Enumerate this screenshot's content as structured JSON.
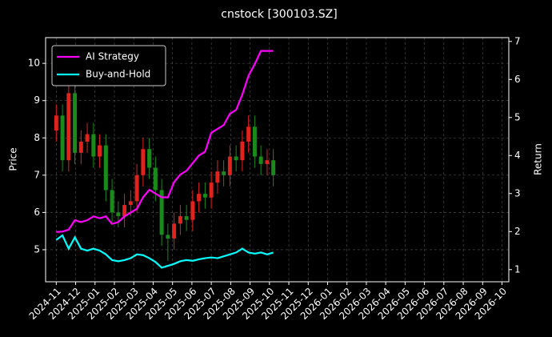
{
  "chart_data": {
    "type": "candlestick",
    "title": "cnstock [300103.SZ]",
    "ylabel": "Price",
    "y2label": "Return",
    "x": [
      0,
      0.32,
      0.64,
      0.96,
      1.28,
      1.6,
      1.92,
      2.24,
      2.56,
      2.88,
      3.2,
      3.52,
      3.84,
      4.16,
      4.48,
      4.8,
      5.12,
      5.44,
      5.76,
      6.08,
      6.4,
      6.72,
      7.04,
      7.36,
      7.68,
      8,
      8.32,
      8.64,
      8.96,
      9.28,
      9.6,
      9.92,
      10.24,
      10.56,
      10.88,
      11.2
    ],
    "open": [
      8.2,
      8.6,
      7.4,
      9.2,
      7.6,
      7.9,
      8.1,
      7.5,
      7.8,
      6.6,
      6.0,
      5.9,
      6.2,
      6.3,
      7.0,
      7.7,
      7.2,
      6.6,
      5.4,
      5.3,
      5.7,
      5.9,
      5.8,
      6.3,
      6.5,
      6.4,
      6.8,
      7.1,
      7.0,
      7.5,
      7.4,
      7.9,
      8.3,
      7.5,
      7.3,
      7.4
    ],
    "high": [
      8.9,
      8.9,
      9.5,
      9.5,
      8.2,
      8.4,
      8.4,
      8.1,
      8.1,
      6.9,
      6.3,
      6.5,
      6.6,
      7.3,
      8.0,
      8.0,
      7.5,
      6.9,
      5.7,
      6.0,
      6.2,
      6.2,
      6.6,
      6.8,
      6.8,
      7.1,
      7.4,
      7.4,
      7.8,
      7.8,
      8.2,
      8.6,
      8.6,
      7.8,
      7.7,
      7.7
    ],
    "low": [
      7.9,
      7.1,
      7.1,
      7.3,
      7.3,
      7.6,
      7.2,
      7.2,
      6.3,
      5.7,
      5.6,
      5.6,
      5.9,
      6.0,
      6.7,
      6.9,
      6.3,
      5.1,
      4.7,
      5.0,
      5.4,
      5.5,
      5.5,
      6.0,
      6.1,
      6.1,
      6.5,
      6.7,
      6.7,
      7.1,
      7.1,
      7.6,
      7.2,
      7.0,
      7.0,
      6.7
    ],
    "close": [
      8.6,
      7.4,
      9.2,
      7.6,
      7.9,
      8.1,
      7.5,
      7.8,
      6.6,
      6.0,
      5.9,
      6.2,
      6.3,
      7.0,
      7.7,
      7.2,
      6.6,
      5.4,
      5.3,
      5.7,
      5.9,
      5.8,
      6.3,
      6.5,
      6.4,
      6.8,
      7.1,
      7.0,
      7.5,
      7.4,
      7.9,
      8.3,
      7.5,
      7.3,
      7.4,
      7.0
    ],
    "up_color": "#e0231c",
    "down_color": "#1a8a1a",
    "series": [
      {
        "name": "AI Strategy",
        "color": "#ff00ff",
        "axis": "y2",
        "values": [
          1.99,
          2.0,
          2.05,
          2.3,
          2.25,
          2.3,
          2.4,
          2.35,
          2.4,
          2.2,
          2.25,
          2.4,
          2.5,
          2.6,
          2.9,
          3.1,
          3.0,
          2.9,
          2.9,
          3.3,
          3.5,
          3.6,
          3.8,
          4.0,
          4.1,
          4.6,
          4.7,
          4.8,
          5.1,
          5.2,
          5.6,
          6.1,
          6.4,
          6.75,
          6.75,
          6.75
        ]
      },
      {
        "name": "Buy-and-Hold",
        "color": "#00ffff",
        "axis": "y2",
        "values": [
          1.78,
          1.9,
          1.55,
          1.85,
          1.55,
          1.5,
          1.55,
          1.5,
          1.4,
          1.25,
          1.22,
          1.25,
          1.3,
          1.4,
          1.38,
          1.3,
          1.2,
          1.05,
          1.1,
          1.15,
          1.22,
          1.25,
          1.23,
          1.27,
          1.3,
          1.32,
          1.3,
          1.35,
          1.4,
          1.45,
          1.55,
          1.45,
          1.42,
          1.45,
          1.4,
          1.45
        ]
      }
    ],
    "xlim": [
      -0.55,
      23.35
    ],
    "ylim": [
      4.14,
      10.69
    ],
    "y2lim": [
      0.68,
      7.1
    ],
    "xticks": [
      {
        "value": 0,
        "label": "2024-11"
      },
      {
        "value": 1,
        "label": "2024-12"
      },
      {
        "value": 2,
        "label": "2025-01"
      },
      {
        "value": 3,
        "label": "2025-02"
      },
      {
        "value": 4,
        "label": "2025-03"
      },
      {
        "value": 5,
        "label": "2025-04"
      },
      {
        "value": 6,
        "label": "2025-05"
      },
      {
        "value": 7,
        "label": "2025-06"
      },
      {
        "value": 8,
        "label": "2025-07"
      },
      {
        "value": 9,
        "label": "2025-08"
      },
      {
        "value": 10,
        "label": "2025-09"
      },
      {
        "value": 11,
        "label": "2025-10"
      },
      {
        "value": 12,
        "label": "2025-11"
      },
      {
        "value": 13,
        "label": "2025-12"
      },
      {
        "value": 14,
        "label": "2026-01"
      },
      {
        "value": 15,
        "label": "2026-02"
      },
      {
        "value": 16,
        "label": "2026-03"
      },
      {
        "value": 17,
        "label": "2026-04"
      },
      {
        "value": 18,
        "label": "2026-05"
      },
      {
        "value": 19,
        "label": "2026-06"
      },
      {
        "value": 20,
        "label": "2026-07"
      },
      {
        "value": 21,
        "label": "2026-08"
      },
      {
        "value": 22,
        "label": "2026-09"
      },
      {
        "value": 23,
        "label": "2026-10"
      }
    ],
    "yticks": [
      5,
      6,
      7,
      8,
      9,
      10
    ],
    "y2ticks": [
      1,
      2,
      3,
      4,
      5,
      6,
      7
    ],
    "grid": true,
    "legend": "upper left"
  }
}
